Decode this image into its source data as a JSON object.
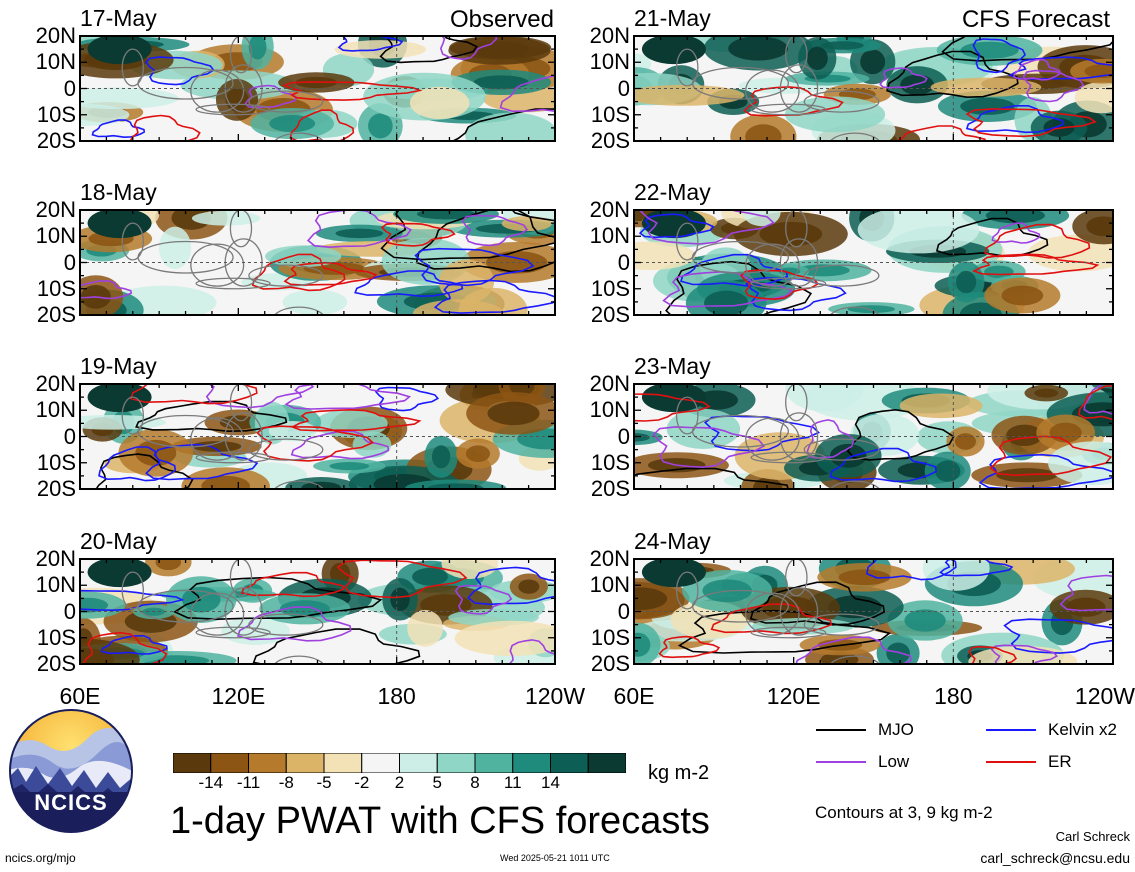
{
  "headers": {
    "left": "Observed",
    "right": "CFS Forecast"
  },
  "panels": [
    {
      "date": "17-May",
      "column": "left"
    },
    {
      "date": "18-May",
      "column": "left"
    },
    {
      "date": "19-May",
      "column": "left"
    },
    {
      "date": "20-May",
      "column": "left"
    },
    {
      "date": "21-May",
      "column": "right"
    },
    {
      "date": "22-May",
      "column": "right"
    },
    {
      "date": "23-May",
      "column": "right"
    },
    {
      "date": "24-May",
      "column": "right"
    }
  ],
  "chart_data": {
    "type": "heatmap",
    "title": "1-day PWAT with CFS forecasts",
    "x_ticks": [
      "60E",
      "120E",
      "180",
      "120W"
    ],
    "y_ticks": [
      "20N",
      "10N",
      "0",
      "10S",
      "20S"
    ],
    "xlim": [
      60,
      240
    ],
    "ylim": [
      -20,
      20
    ],
    "colorbar": {
      "unit": "kg m-2",
      "tick_labels": [
        "-14",
        "-11",
        "-8",
        "-5",
        "-2",
        "2",
        "5",
        "8",
        "11",
        "14"
      ],
      "colors": [
        "#5a3a0c",
        "#8c5514",
        "#b57a2c",
        "#dcb468",
        "#f2e2b6",
        "#f5f5f5",
        "#cdeee6",
        "#8fd6c6",
        "#4fb3a0",
        "#1f8b7c",
        "#0d5e54",
        "#0a3a32"
      ]
    },
    "legend": [
      {
        "label": "MJO",
        "color": "#000000"
      },
      {
        "label": "Kelvin x2",
        "color": "#1a1aff"
      },
      {
        "label": "Low",
        "color": "#a040e0"
      },
      {
        "label": "ER",
        "color": "#e01010"
      }
    ],
    "contour_note": "Contours at 3, 9 kg m-2"
  },
  "footer": {
    "logo_text": "NCICS",
    "url": "ncics.org/mjo",
    "timestamp": "Wed 2025-05-21 1011 UTC",
    "author": "Carl Schreck",
    "email": "carl_schreck@ncsu.edu"
  }
}
